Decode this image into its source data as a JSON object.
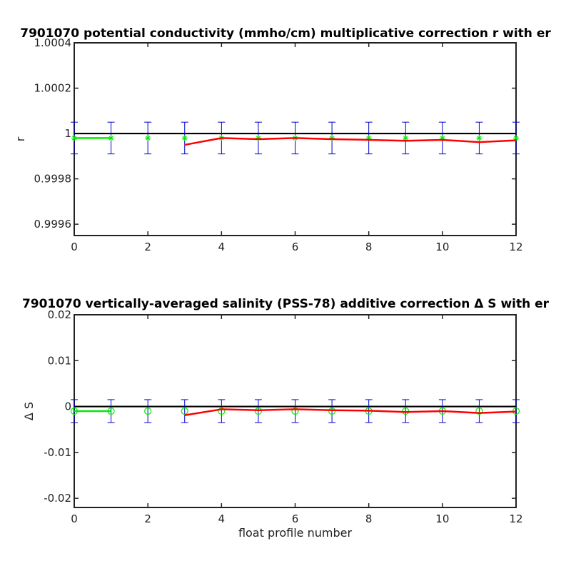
{
  "chart_data": [
    {
      "type": "line",
      "title": "7901070 potential conductivity (mmho/cm) multiplicative correction r with er",
      "xlabel": "",
      "ylabel": "r",
      "xlim": [
        0,
        12
      ],
      "ylim": [
        0.99955,
        1.0004
      ],
      "xticks": [
        0,
        2,
        4,
        6,
        8,
        10,
        12
      ],
      "xtick_labels": [
        "0",
        "2",
        "4",
        "6",
        "8",
        "10",
        "12"
      ],
      "yticks": [
        0.9996,
        0.9998,
        1.0,
        1.0002,
        1.0004
      ],
      "ytick_labels": [
        "0.9996",
        "0.9998",
        "1",
        "1.0002",
        "1.0004"
      ],
      "reference_line": 1.0,
      "marker": "asterisk",
      "colors": {
        "reference": "#000000",
        "error": "#0000cc",
        "marker": "#00ee00",
        "adjusted": "#ff0000"
      },
      "series": [
        {
          "role": "green-line",
          "x": [
            0,
            1
          ],
          "values": [
            0.99998,
            0.99998
          ]
        },
        {
          "role": "markers",
          "x": [
            0,
            1,
            2,
            3,
            4,
            5,
            6,
            7,
            8,
            9,
            10,
            11,
            12
          ],
          "values": [
            0.99998,
            0.99998,
            0.99998,
            0.99998,
            0.99998,
            0.99998,
            0.99998,
            0.99998,
            0.99998,
            0.99998,
            0.99998,
            0.99998,
            0.99998
          ],
          "error": [
            7e-05,
            7e-05,
            7e-05,
            7e-05,
            7e-05,
            7e-05,
            7e-05,
            7e-05,
            7e-05,
            7e-05,
            7e-05,
            7e-05,
            7e-05
          ]
        },
        {
          "role": "red-line",
          "x": [
            3,
            4,
            5,
            6,
            7,
            8,
            9,
            10,
            11,
            12
          ],
          "values": [
            0.99995,
            0.99998,
            0.999975,
            0.99998,
            0.999975,
            0.999972,
            0.999968,
            0.999972,
            0.999962,
            0.99997
          ]
        }
      ],
      "grid": false
    },
    {
      "type": "line",
      "title": "7901070 vertically-averaged salinity (PSS-78) additive correction Δ S with er",
      "xlabel": "float profile number",
      "ylabel": "Δ S",
      "xlim": [
        0,
        12
      ],
      "ylim": [
        -0.022,
        0.02
      ],
      "xticks": [
        0,
        2,
        4,
        6,
        8,
        10,
        12
      ],
      "xtick_labels": [
        "0",
        "2",
        "4",
        "6",
        "8",
        "10",
        "12"
      ],
      "yticks": [
        -0.02,
        -0.01,
        0,
        0.01,
        0.02
      ],
      "ytick_labels": [
        "-0.02",
        "-0.01",
        "0",
        "0.01",
        "0.02"
      ],
      "reference_line": 0,
      "marker": "circle",
      "colors": {
        "reference": "#000000",
        "error": "#0000cc",
        "marker": "#00ee00",
        "adjusted": "#ff0000"
      },
      "series": [
        {
          "role": "green-line",
          "x": [
            0,
            1
          ],
          "values": [
            -0.001,
            -0.001
          ]
        },
        {
          "role": "markers",
          "x": [
            0,
            1,
            2,
            3,
            4,
            5,
            6,
            7,
            8,
            9,
            10,
            11,
            12
          ],
          "values": [
            -0.001,
            -0.001,
            -0.001,
            -0.001,
            -0.001,
            -0.001,
            -0.001,
            -0.001,
            -0.001,
            -0.001,
            -0.001,
            -0.001,
            -0.001
          ],
          "error": [
            0.0025,
            0.0025,
            0.0025,
            0.0025,
            0.0025,
            0.0025,
            0.0025,
            0.0025,
            0.0025,
            0.0025,
            0.0025,
            0.0025,
            0.0025
          ]
        },
        {
          "role": "red-line",
          "x": [
            3,
            4,
            5,
            6,
            7,
            8,
            9,
            10,
            11,
            12
          ],
          "values": [
            -0.0019,
            -0.0006,
            -0.0008,
            -0.0006,
            -0.0008,
            -0.0009,
            -0.0012,
            -0.001,
            -0.0014,
            -0.0011
          ]
        }
      ],
      "grid": false
    }
  ]
}
